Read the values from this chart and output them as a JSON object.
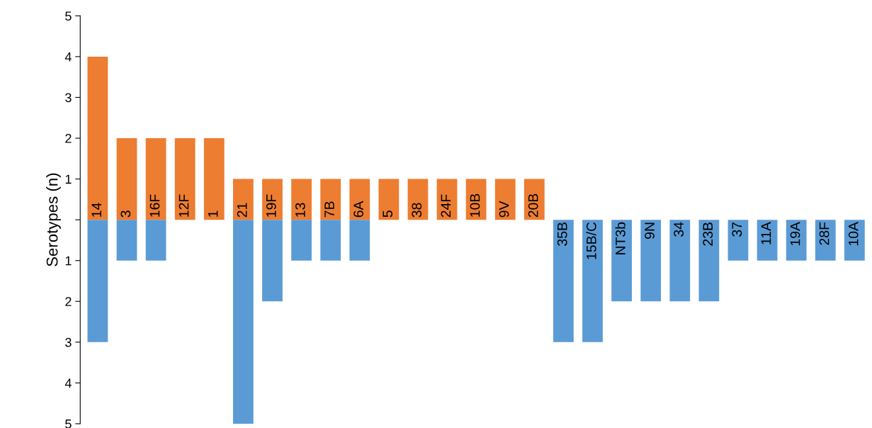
{
  "chart_data": {
    "type": "bar",
    "ylabel": "Serotypes (n)",
    "categories": [
      "14",
      "3",
      "16F",
      "12F",
      "1",
      "21",
      "19F",
      "13",
      "7B",
      "6A",
      "5",
      "38",
      "24F",
      "10B",
      "9V",
      "20B",
      "35B",
      "15B/C",
      "NT3b",
      "9N",
      "34",
      "23B",
      "37",
      "11A",
      "19A",
      "28F",
      "10A"
    ],
    "series": [
      {
        "color": "#ed7d31",
        "values": [
          4,
          2,
          2,
          2,
          2,
          1,
          1,
          1,
          1,
          1,
          1,
          1,
          1,
          1,
          1,
          1,
          null,
          null,
          null,
          null,
          null,
          null,
          null,
          null,
          null,
          null,
          null
        ]
      },
      {
        "color": "#5b9bd5",
        "values": [
          -3,
          -1,
          -1,
          null,
          null,
          -5,
          -2,
          -1,
          -1,
          -1,
          null,
          null,
          null,
          null,
          null,
          null,
          -3,
          -3,
          -2,
          -2,
          -2,
          -2,
          -1,
          -1,
          -1,
          -1,
          -1
        ]
      }
    ],
    "ylim": [
      -5,
      5
    ],
    "yticks": [
      {
        "value": -5,
        "label": "5"
      },
      {
        "value": -4,
        "label": "4"
      },
      {
        "value": -3,
        "label": "3"
      },
      {
        "value": -2,
        "label": "2"
      },
      {
        "value": -1,
        "label": "1"
      },
      {
        "value": 0,
        "label": null
      },
      1,
      2,
      3,
      4,
      5
    ],
    "tick_labels": "y",
    "grid": false,
    "legend": false
  }
}
